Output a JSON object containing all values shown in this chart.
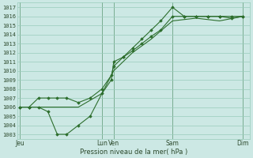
{
  "bg_color": "#cce8e4",
  "grid_color": "#99ccbb",
  "line_color": "#2d6e2d",
  "marker_color": "#2d6e2d",
  "ylabel_ticks": [
    1003,
    1004,
    1005,
    1006,
    1007,
    1008,
    1009,
    1010,
    1011,
    1012,
    1013,
    1014,
    1015,
    1016,
    1017
  ],
  "ylim": [
    1002.5,
    1017.5
  ],
  "xlabel": "Pression niveau de la mer( hPa )",
  "day_labels": [
    "Jeu",
    "Lun",
    "Ven",
    "Sam",
    "Dim"
  ],
  "day_positions": [
    0.0,
    3.5,
    4.0,
    6.5,
    9.5
  ],
  "xlim": [
    -0.1,
    9.8
  ],
  "line1_x": [
    0.0,
    0.4,
    0.8,
    1.2,
    1.6,
    2.0,
    2.5,
    3.0,
    3.5,
    3.9,
    4.0,
    4.4,
    4.8,
    5.2,
    5.6,
    6.0,
    6.5,
    7.0,
    7.5,
    8.0,
    8.5,
    9.0,
    9.5
  ],
  "line1_y": [
    1006,
    1006,
    1006,
    1005.5,
    1003,
    1003,
    1004,
    1005,
    1007.5,
    1009,
    1011,
    1011.5,
    1012.5,
    1013.5,
    1014.5,
    1015.5,
    1017,
    1016,
    1016,
    1016,
    1016,
    1016,
    1016
  ],
  "line2_x": [
    0.0,
    0.4,
    0.8,
    1.2,
    1.6,
    2.0,
    2.5,
    3.0,
    3.5,
    3.9,
    4.0,
    4.4,
    4.8,
    5.2,
    5.6,
    6.0,
    6.5,
    7.0,
    7.5,
    8.0,
    8.5,
    9.0,
    9.5
  ],
  "line2_y": [
    1006,
    1006,
    1007,
    1007,
    1007,
    1007,
    1006.5,
    1007,
    1008,
    1009.5,
    1010.5,
    1011.5,
    1012.2,
    1013,
    1013.8,
    1014.5,
    1016,
    1016,
    1016,
    1016,
    1016,
    1015.8,
    1016
  ],
  "line3_x": [
    0.0,
    1.6,
    2.5,
    3.5,
    4.0,
    4.8,
    5.6,
    6.5,
    7.5,
    8.5,
    9.5
  ],
  "line3_y": [
    1006,
    1006,
    1006,
    1007.5,
    1010,
    1012,
    1013.5,
    1015.5,
    1015.8,
    1015.5,
    1016
  ]
}
